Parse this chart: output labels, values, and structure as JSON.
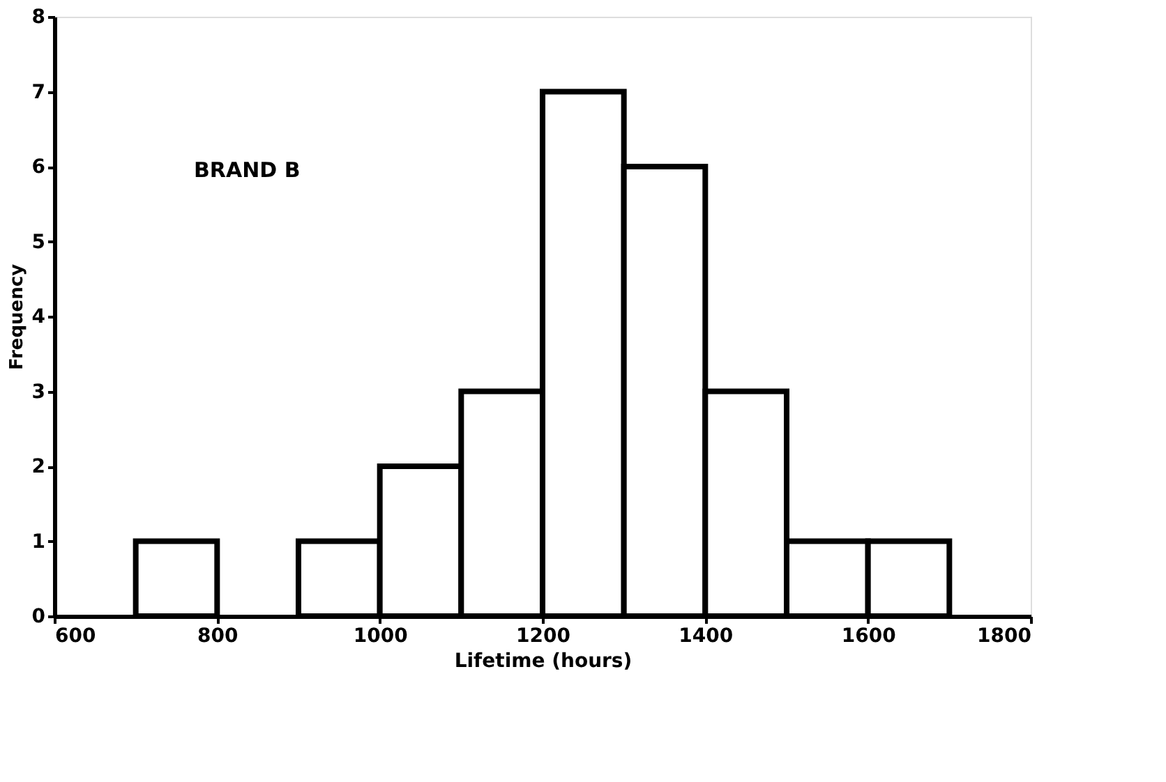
{
  "chart_data": {
    "type": "histogram",
    "xlabel": "Lifetime (hours)",
    "ylabel": "Frequency",
    "bins": [
      700,
      800,
      900,
      1000,
      1100,
      1200,
      1300,
      1400,
      1500,
      1600,
      1700
    ],
    "values": [
      1,
      0,
      1,
      2,
      3,
      7,
      6,
      3,
      1,
      1
    ],
    "color": "#ffffff",
    "xlim": [
      600,
      1800
    ],
    "xticks": [
      600,
      800,
      1000,
      1200,
      1400,
      1600,
      1800
    ],
    "ylim": [
      0,
      8
    ],
    "yticks": [
      0,
      1,
      2,
      3,
      4,
      5,
      6,
      7,
      8
    ],
    "grid": false,
    "annotations": [
      "BRAND B"
    ]
  }
}
